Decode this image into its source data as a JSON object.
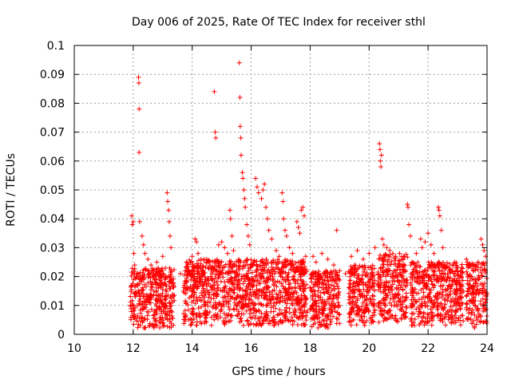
{
  "chart_data": {
    "type": "scatter",
    "title": "Day 006 of 2025, Rate Of TEC Index for receiver sthl",
    "xlabel": "GPS time / hours",
    "ylabel": "ROTI / TECUs",
    "xlim": [
      10,
      24
    ],
    "ylim": [
      0,
      0.1
    ],
    "x_ticks": [
      10,
      12,
      14,
      16,
      18,
      20,
      22,
      24
    ],
    "x_tick_labels": [
      "10",
      "12",
      "14",
      "16",
      "18",
      "20",
      "22",
      "24"
    ],
    "y_ticks": [
      0,
      0.01,
      0.02,
      0.03,
      0.04,
      0.05,
      0.06,
      0.07,
      0.08,
      0.09,
      0.1
    ],
    "y_tick_labels": [
      "0",
      "0.01",
      "0.02",
      "0.03",
      "0.04",
      "0.05",
      "0.06",
      "0.07",
      "0.08",
      "0.09",
      "0.1"
    ],
    "grid": true,
    "marker": "+",
    "color": "#ff0000",
    "series": [
      {
        "name": "ROTI",
        "points": [
          [
            11.95,
            0.041
          ],
          [
            11.97,
            0.038
          ],
          [
            12.0,
            0.039
          ],
          [
            12.02,
            0.028
          ],
          [
            12.05,
            0.024
          ],
          [
            12.18,
            0.089
          ],
          [
            12.19,
            0.087
          ],
          [
            12.2,
            0.078
          ],
          [
            12.2,
            0.063
          ],
          [
            12.22,
            0.039
          ],
          [
            12.3,
            0.034
          ],
          [
            12.35,
            0.031
          ],
          [
            12.4,
            0.028
          ],
          [
            12.5,
            0.026
          ],
          [
            12.6,
            0.024
          ],
          [
            12.8,
            0.025
          ],
          [
            12.9,
            0.022
          ],
          [
            13.0,
            0.027
          ],
          [
            13.15,
            0.049
          ],
          [
            13.17,
            0.046
          ],
          [
            13.2,
            0.043
          ],
          [
            13.22,
            0.039
          ],
          [
            13.25,
            0.034
          ],
          [
            13.28,
            0.03
          ],
          [
            13.6,
            0.021
          ],
          [
            13.8,
            0.025
          ],
          [
            13.9,
            0.022
          ],
          [
            14.0,
            0.027
          ],
          [
            14.1,
            0.033
          ],
          [
            14.15,
            0.032
          ],
          [
            14.2,
            0.028
          ],
          [
            14.3,
            0.026
          ],
          [
            14.5,
            0.025
          ],
          [
            14.75,
            0.084
          ],
          [
            14.78,
            0.07
          ],
          [
            14.8,
            0.068
          ],
          [
            14.9,
            0.031
          ],
          [
            15.0,
            0.032
          ],
          [
            15.1,
            0.03
          ],
          [
            15.2,
            0.028
          ],
          [
            15.28,
            0.043
          ],
          [
            15.3,
            0.04
          ],
          [
            15.35,
            0.034
          ],
          [
            15.4,
            0.029
          ],
          [
            15.6,
            0.094
          ],
          [
            15.62,
            0.082
          ],
          [
            15.63,
            0.072
          ],
          [
            15.65,
            0.068
          ],
          [
            15.66,
            0.062
          ],
          [
            15.7,
            0.056
          ],
          [
            15.72,
            0.054
          ],
          [
            15.75,
            0.05
          ],
          [
            15.78,
            0.047
          ],
          [
            15.8,
            0.044
          ],
          [
            15.85,
            0.038
          ],
          [
            15.9,
            0.034
          ],
          [
            15.95,
            0.031
          ],
          [
            16.15,
            0.054
          ],
          [
            16.2,
            0.051
          ],
          [
            16.25,
            0.049
          ],
          [
            16.35,
            0.047
          ],
          [
            16.4,
            0.05
          ],
          [
            16.45,
            0.052
          ],
          [
            16.5,
            0.044
          ],
          [
            16.55,
            0.04
          ],
          [
            16.6,
            0.036
          ],
          [
            16.7,
            0.033
          ],
          [
            16.85,
            0.029
          ],
          [
            16.95,
            0.027
          ],
          [
            17.05,
            0.049
          ],
          [
            17.08,
            0.046
          ],
          [
            17.1,
            0.04
          ],
          [
            17.15,
            0.036
          ],
          [
            17.2,
            0.034
          ],
          [
            17.3,
            0.03
          ],
          [
            17.4,
            0.028
          ],
          [
            17.55,
            0.039
          ],
          [
            17.6,
            0.037
          ],
          [
            17.65,
            0.035
          ],
          [
            17.7,
            0.043
          ],
          [
            17.75,
            0.044
          ],
          [
            17.8,
            0.041
          ],
          [
            17.85,
            0.027
          ],
          [
            18.1,
            0.027
          ],
          [
            18.2,
            0.025
          ],
          [
            18.4,
            0.028
          ],
          [
            18.6,
            0.026
          ],
          [
            18.8,
            0.024
          ],
          [
            18.9,
            0.036
          ],
          [
            19.0,
            0.022
          ],
          [
            19.2,
            0.021
          ],
          [
            19.4,
            0.027
          ],
          [
            19.6,
            0.029
          ],
          [
            19.8,
            0.026
          ],
          [
            20.0,
            0.028
          ],
          [
            20.2,
            0.03
          ],
          [
            20.35,
            0.066
          ],
          [
            20.37,
            0.064
          ],
          [
            20.38,
            0.06
          ],
          [
            20.4,
            0.058
          ],
          [
            20.42,
            0.062
          ],
          [
            20.45,
            0.033
          ],
          [
            20.5,
            0.031
          ],
          [
            20.6,
            0.03
          ],
          [
            20.7,
            0.029
          ],
          [
            20.9,
            0.027
          ],
          [
            21.1,
            0.026
          ],
          [
            21.3,
            0.045
          ],
          [
            21.32,
            0.044
          ],
          [
            21.35,
            0.038
          ],
          [
            21.4,
            0.034
          ],
          [
            21.6,
            0.028
          ],
          [
            21.75,
            0.033
          ],
          [
            21.8,
            0.03
          ],
          [
            21.9,
            0.032
          ],
          [
            22.0,
            0.035
          ],
          [
            22.1,
            0.031
          ],
          [
            22.2,
            0.028
          ],
          [
            22.35,
            0.044
          ],
          [
            22.37,
            0.043
          ],
          [
            22.4,
            0.041
          ],
          [
            22.45,
            0.036
          ],
          [
            22.5,
            0.03
          ],
          [
            22.7,
            0.023
          ],
          [
            22.9,
            0.025
          ],
          [
            23.1,
            0.022
          ],
          [
            23.3,
            0.026
          ],
          [
            23.5,
            0.024
          ],
          [
            23.7,
            0.025
          ],
          [
            23.8,
            0.033
          ],
          [
            23.85,
            0.031
          ],
          [
            23.9,
            0.029
          ],
          [
            23.95,
            0.027
          ]
        ]
      }
    ],
    "dense_bands": [
      {
        "x": [
          11.9,
          13.4
        ],
        "y_range": [
          0.002,
          0.023
        ]
      },
      {
        "x": [
          13.7,
          17.9
        ],
        "y_range": [
          0.003,
          0.026
        ]
      },
      {
        "x": [
          18.0,
          19.0
        ],
        "y_range": [
          0.002,
          0.022
        ]
      },
      {
        "x": [
          19.3,
          20.2
        ],
        "y_range": [
          0.003,
          0.024
        ]
      },
      {
        "x": [
          20.3,
          21.3
        ],
        "y_range": [
          0.004,
          0.028
        ]
      },
      {
        "x": [
          21.4,
          23.2
        ],
        "y_range": [
          0.003,
          0.025
        ]
      },
      {
        "x": [
          23.3,
          24.0
        ],
        "y_range": [
          0.002,
          0.025
        ]
      }
    ]
  }
}
